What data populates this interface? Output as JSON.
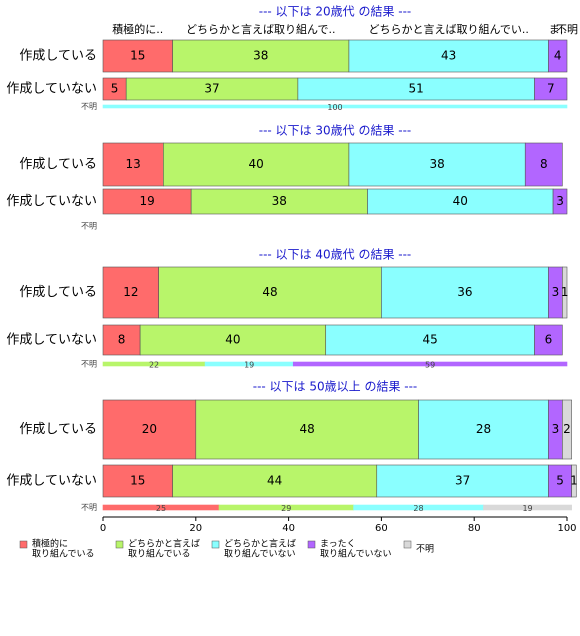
{
  "chart_data": [
    {
      "type": "bar",
      "title": "--- 以下は 20歳代 の結果 ---",
      "column_labels": [
        "積極的に..",
        "どちらかと言えば取り組んで..",
        "どちらかと言えば取り組んでい..",
        "ま..",
        "不明"
      ],
      "categories": [
        "作成している",
        "作成していない",
        "不明"
      ],
      "xlim": [
        0,
        100
      ],
      "series": [
        {
          "color": "#ff6b6b",
          "values": [
            15,
            5,
            null
          ]
        },
        {
          "color": "#b8f56a",
          "values": [
            38,
            37,
            null
          ]
        },
        {
          "color": "#8affff",
          "values": [
            43,
            51,
            100
          ]
        },
        {
          "color": "#b266ff",
          "values": [
            4,
            7,
            null
          ]
        },
        {
          "color": "#d9d9d9",
          "values": [
            null,
            null,
            null
          ]
        }
      ]
    },
    {
      "type": "bar",
      "title": "--- 以下は 30歳代 の結果 ---",
      "categories": [
        "作成している",
        "作成していない",
        "不明"
      ],
      "xlim": [
        0,
        100
      ],
      "series": [
        {
          "color": "#ff6b6b",
          "values": [
            13,
            19,
            null
          ]
        },
        {
          "color": "#b8f56a",
          "values": [
            40,
            38,
            null
          ]
        },
        {
          "color": "#8affff",
          "values": [
            38,
            40,
            null
          ]
        },
        {
          "color": "#b266ff",
          "values": [
            8,
            3,
            null
          ]
        },
        {
          "color": "#d9d9d9",
          "values": [
            null,
            null,
            null
          ]
        }
      ]
    },
    {
      "type": "bar",
      "title": "--- 以下は 40歳代 の結果 ---",
      "categories": [
        "作成している",
        "作成していない",
        "不明"
      ],
      "xlim": [
        0,
        100
      ],
      "series": [
        {
          "color": "#ff6b6b",
          "values": [
            12,
            8,
            null
          ]
        },
        {
          "color": "#b8f56a",
          "values": [
            48,
            40,
            22
          ]
        },
        {
          "color": "#8affff",
          "values": [
            36,
            45,
            19
          ]
        },
        {
          "color": "#b266ff",
          "values": [
            3,
            6,
            59
          ]
        },
        {
          "color": "#d9d9d9",
          "values": [
            1,
            null,
            null
          ]
        }
      ]
    },
    {
      "type": "bar",
      "title": "--- 以下は 50歳以上 の結果 ---",
      "categories": [
        "作成している",
        "作成していない",
        "不明"
      ],
      "xlim": [
        0,
        100
      ],
      "xticks": [
        0,
        20,
        40,
        60,
        80,
        100
      ],
      "series": [
        {
          "name": [
            "積極的に",
            "取り組んでいる"
          ],
          "color": "#ff6b6b",
          "values": [
            20,
            15,
            25
          ]
        },
        {
          "name": [
            "どちらかと言えば",
            "取り組んでいる"
          ],
          "color": "#b8f56a",
          "values": [
            48,
            44,
            29
          ]
        },
        {
          "name": [
            "どちらかと言えば",
            "取り組んでいない"
          ],
          "color": "#8affff",
          "values": [
            28,
            37,
            28
          ]
        },
        {
          "name": [
            "まったく",
            "取り組んでいない"
          ],
          "color": "#b266ff",
          "values": [
            3,
            5,
            null
          ]
        },
        {
          "name": [
            "不明"
          ],
          "color": "#d9d9d9",
          "values": [
            2,
            1,
            19
          ]
        }
      ]
    }
  ]
}
